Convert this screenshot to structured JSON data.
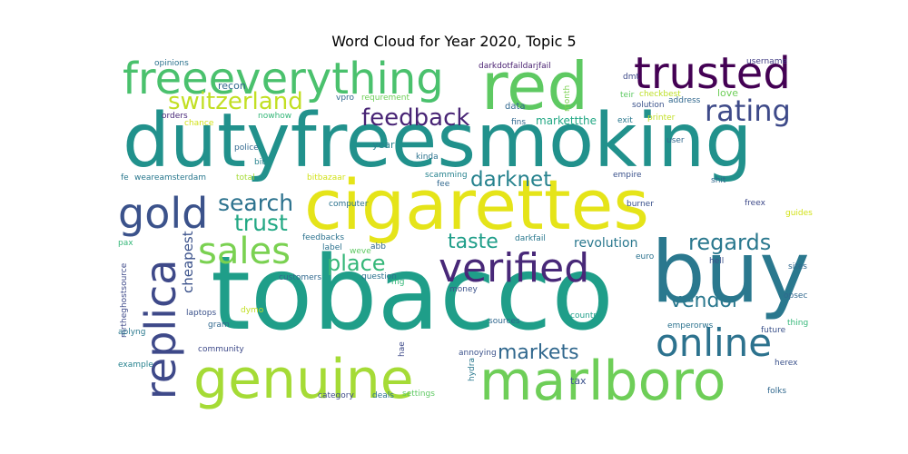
{
  "chart_data": {
    "type": "wordcloud",
    "title": "Word Cloud for Year 2020, Topic 5",
    "palette": "viridis",
    "words": [
      {
        "text": "dutyfreesmoking",
        "color": "#21918c"
      },
      {
        "text": "tobacco",
        "color": "#1f9e89"
      },
      {
        "text": "cigarettes",
        "color": "#e5e419"
      },
      {
        "text": "buy",
        "color": "#2a788e"
      },
      {
        "text": "red",
        "color": "#5ec962"
      },
      {
        "text": "freeeverything",
        "color": "#4ac16d"
      },
      {
        "text": "trusted",
        "color": "#440154"
      },
      {
        "text": "marlboro",
        "color": "#6ece58"
      },
      {
        "text": "genuine",
        "color": "#a5db36"
      },
      {
        "text": "verified",
        "color": "#482878"
      },
      {
        "text": "online",
        "color": "#2c728e"
      },
      {
        "text": "replica",
        "color": "#3e4989"
      },
      {
        "text": "gold",
        "color": "#3b528b"
      },
      {
        "text": "sales",
        "color": "#7ad151"
      },
      {
        "text": "rating",
        "color": "#3e4a89"
      },
      {
        "text": "switzerland",
        "color": "#c2df23"
      },
      {
        "text": "feedback",
        "color": "#482475"
      },
      {
        "text": "search",
        "color": "#2c728e"
      },
      {
        "text": "trust",
        "color": "#22a884"
      },
      {
        "text": "darknet",
        "color": "#26828e"
      },
      {
        "text": "taste",
        "color": "#1f9e89"
      },
      {
        "text": "place",
        "color": "#35b779"
      },
      {
        "text": "regards",
        "color": "#2a788e"
      },
      {
        "text": "markets",
        "color": "#31688e"
      },
      {
        "text": "vendor",
        "color": "#2a788e"
      },
      {
        "text": "revolution",
        "color": "#2a788e"
      },
      {
        "text": "cheapest",
        "color": "#3b528b"
      },
      {
        "text": "markettthe",
        "color": "#22a884"
      },
      {
        "text": "darkdotfaildarjfail",
        "color": "#481f70"
      },
      {
        "text": "opinions",
        "color": "#2c728e"
      },
      {
        "text": "recon",
        "color": "#31688e"
      },
      {
        "text": "vpro",
        "color": "#31688e"
      },
      {
        "text": "requrement",
        "color": "#6ece58"
      },
      {
        "text": "data",
        "color": "#31688e"
      },
      {
        "text": "month",
        "color": "#7ad151"
      },
      {
        "text": "dmt",
        "color": "#3e4a89"
      },
      {
        "text": "teir",
        "color": "#5ec962"
      },
      {
        "text": "checkbest",
        "color": "#bddf26"
      },
      {
        "text": "username",
        "color": "#433e85"
      },
      {
        "text": "address",
        "color": "#31688e"
      },
      {
        "text": "love",
        "color": "#6ece58"
      },
      {
        "text": "solution",
        "color": "#3b528b"
      },
      {
        "text": "exit",
        "color": "#2a788e"
      },
      {
        "text": "printer",
        "color": "#c2df23"
      },
      {
        "text": "orders",
        "color": "#482878"
      },
      {
        "text": "chance",
        "color": "#d2e21b"
      },
      {
        "text": "nowhow",
        "color": "#35b779"
      },
      {
        "text": "fins",
        "color": "#31688e"
      },
      {
        "text": "user",
        "color": "#31688e"
      },
      {
        "text": "police",
        "color": "#31688e"
      },
      {
        "text": "bit",
        "color": "#26828e"
      },
      {
        "text": "year",
        "color": "#26828e"
      },
      {
        "text": "kinda",
        "color": "#2c728e"
      },
      {
        "text": "fe",
        "color": "#2a788e"
      },
      {
        "text": "weareamsterdam",
        "color": "#2a788e"
      },
      {
        "text": "total",
        "color": "#a5db36"
      },
      {
        "text": "bitbazaar",
        "color": "#d2e21b"
      },
      {
        "text": "scamming",
        "color": "#26828e"
      },
      {
        "text": "fee",
        "color": "#31688e"
      },
      {
        "text": "empire",
        "color": "#3b528b"
      },
      {
        "text": "shit",
        "color": "#31688e"
      },
      {
        "text": "freex",
        "color": "#3e4a89"
      },
      {
        "text": "guides",
        "color": "#d2e21b"
      },
      {
        "text": "computer",
        "color": "#2c728e"
      },
      {
        "text": "burner",
        "color": "#3b528b"
      },
      {
        "text": "pax",
        "color": "#35b779"
      },
      {
        "text": "feedbacks",
        "color": "#2c728e"
      },
      {
        "text": "label",
        "color": "#2c728e"
      },
      {
        "text": "weve",
        "color": "#5ec962"
      },
      {
        "text": "abb",
        "color": "#31688e"
      },
      {
        "text": "darkfail",
        "color": "#2a788e"
      },
      {
        "text": "euro",
        "color": "#2c728e"
      },
      {
        "text": "hell",
        "color": "#3b528b"
      },
      {
        "text": "sites",
        "color": "#31688e"
      },
      {
        "text": "question",
        "color": "#2c728e"
      },
      {
        "text": "mg",
        "color": "#35b779"
      },
      {
        "text": "mrtheghostsource",
        "color": "#3e4989"
      },
      {
        "text": "customers",
        "color": "#31688e"
      },
      {
        "text": "opsec",
        "color": "#31688e"
      },
      {
        "text": "money",
        "color": "#3b528b"
      },
      {
        "text": "laptops",
        "color": "#3b528b"
      },
      {
        "text": "dymo",
        "color": "#c2df23"
      },
      {
        "text": "gram",
        "color": "#31688e"
      },
      {
        "text": "sources",
        "color": "#31688e"
      },
      {
        "text": "country",
        "color": "#1f9e89"
      },
      {
        "text": "emperorws",
        "color": "#2c728e"
      },
      {
        "text": "future",
        "color": "#3b528b"
      },
      {
        "text": "thing",
        "color": "#35b779"
      },
      {
        "text": "aplyng",
        "color": "#2a788e"
      },
      {
        "text": "community",
        "color": "#3e4a89"
      },
      {
        "text": "annoying",
        "color": "#3b528b"
      },
      {
        "text": "hae",
        "color": "#3e4a89"
      },
      {
        "text": "hydra",
        "color": "#2a788e"
      },
      {
        "text": "herex",
        "color": "#3b528b"
      },
      {
        "text": "example",
        "color": "#26828e"
      },
      {
        "text": "tax",
        "color": "#3b528b"
      },
      {
        "text": "category",
        "color": "#3e4a89"
      },
      {
        "text": "deals",
        "color": "#2c728e"
      },
      {
        "text": "settings",
        "color": "#5ec962"
      },
      {
        "text": "folks",
        "color": "#31688e"
      }
    ]
  }
}
